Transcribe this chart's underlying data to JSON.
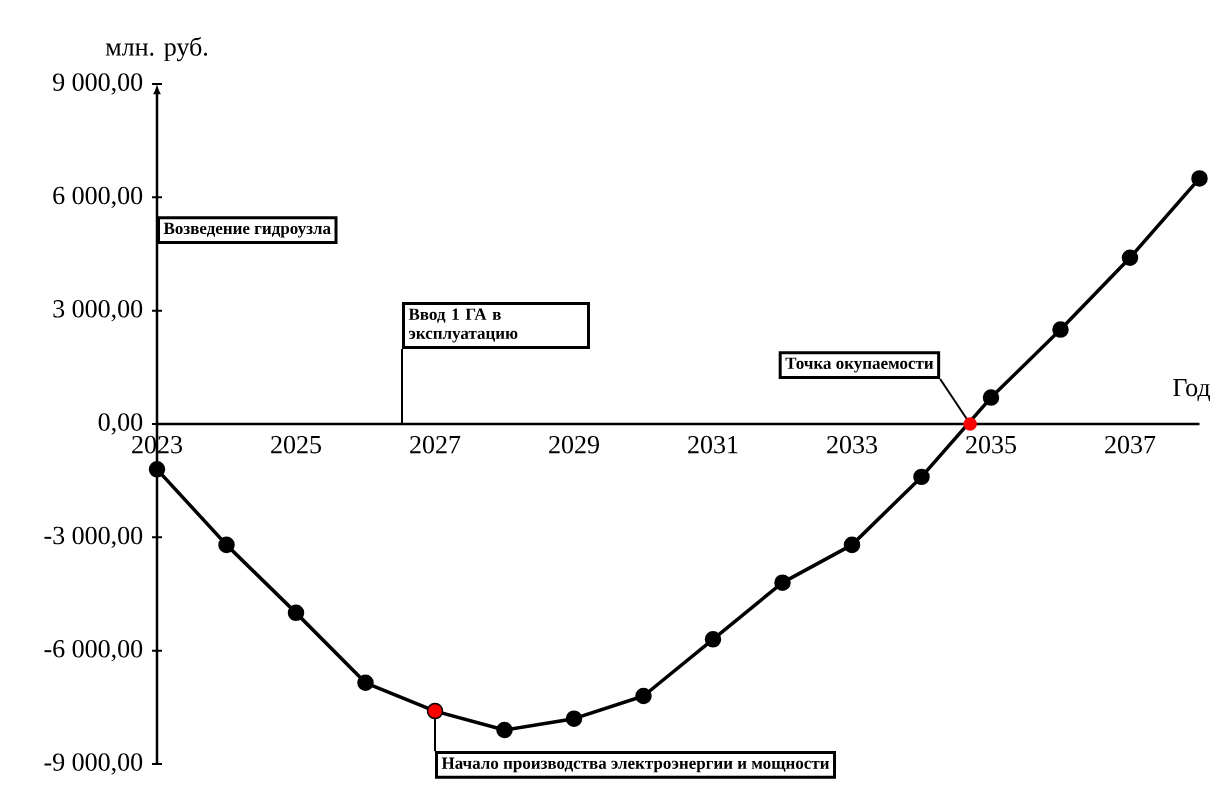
{
  "chart_data": {
    "type": "line",
    "ylabel": "млн. руб.",
    "xlabel": "Год",
    "x": [
      2023,
      2024,
      2025,
      2026,
      2027,
      2028,
      2029,
      2030,
      2031,
      2032,
      2033,
      2034,
      2035,
      2036,
      2037,
      2038
    ],
    "series": [
      {
        "color": "#000000",
        "values": [
          -1200,
          -3200,
          -5000,
          -6850,
          -7600,
          -8100,
          -7800,
          -7200,
          -5700,
          -4200,
          -3200,
          -1400,
          700,
          2500,
          4400,
          6500
        ]
      },
      {
        "type": "scatter",
        "color": "#ff0000",
        "x": [
          2027,
          2034.7
        ],
        "values": [
          -7600,
          0
        ]
      }
    ],
    "xlim": [
      2023,
      2038
    ],
    "ylim": [
      -9000,
      9000
    ],
    "xticks": [
      2023,
      2025,
      2027,
      2029,
      2031,
      2033,
      2035,
      2037
    ],
    "yticks": [
      {
        "value": -9000,
        "label": "-9 000,00"
      },
      {
        "value": -6000,
        "label": "-6 000,00"
      },
      {
        "value": -3000,
        "label": "-3 000,00"
      },
      {
        "value": 0,
        "label": "0,00"
      },
      {
        "value": 3000,
        "label": "3 000,00"
      },
      {
        "value": 6000,
        "label": "6 000,00"
      },
      {
        "value": 9000,
        "label": "9 000,00"
      }
    ],
    "grid": false,
    "marker": "circle",
    "line_style": "solid",
    "annotations": [
      "Возведение гидроузла",
      "Ввод 1 ГА в эксплуатацию",
      {
        "text": "Точка окупаемости",
        "x": 2034.7,
        "y": 0
      },
      {
        "text": "Начало производства электроэнергии и мощности",
        "x": 2027,
        "y": -7600
      }
    ]
  }
}
